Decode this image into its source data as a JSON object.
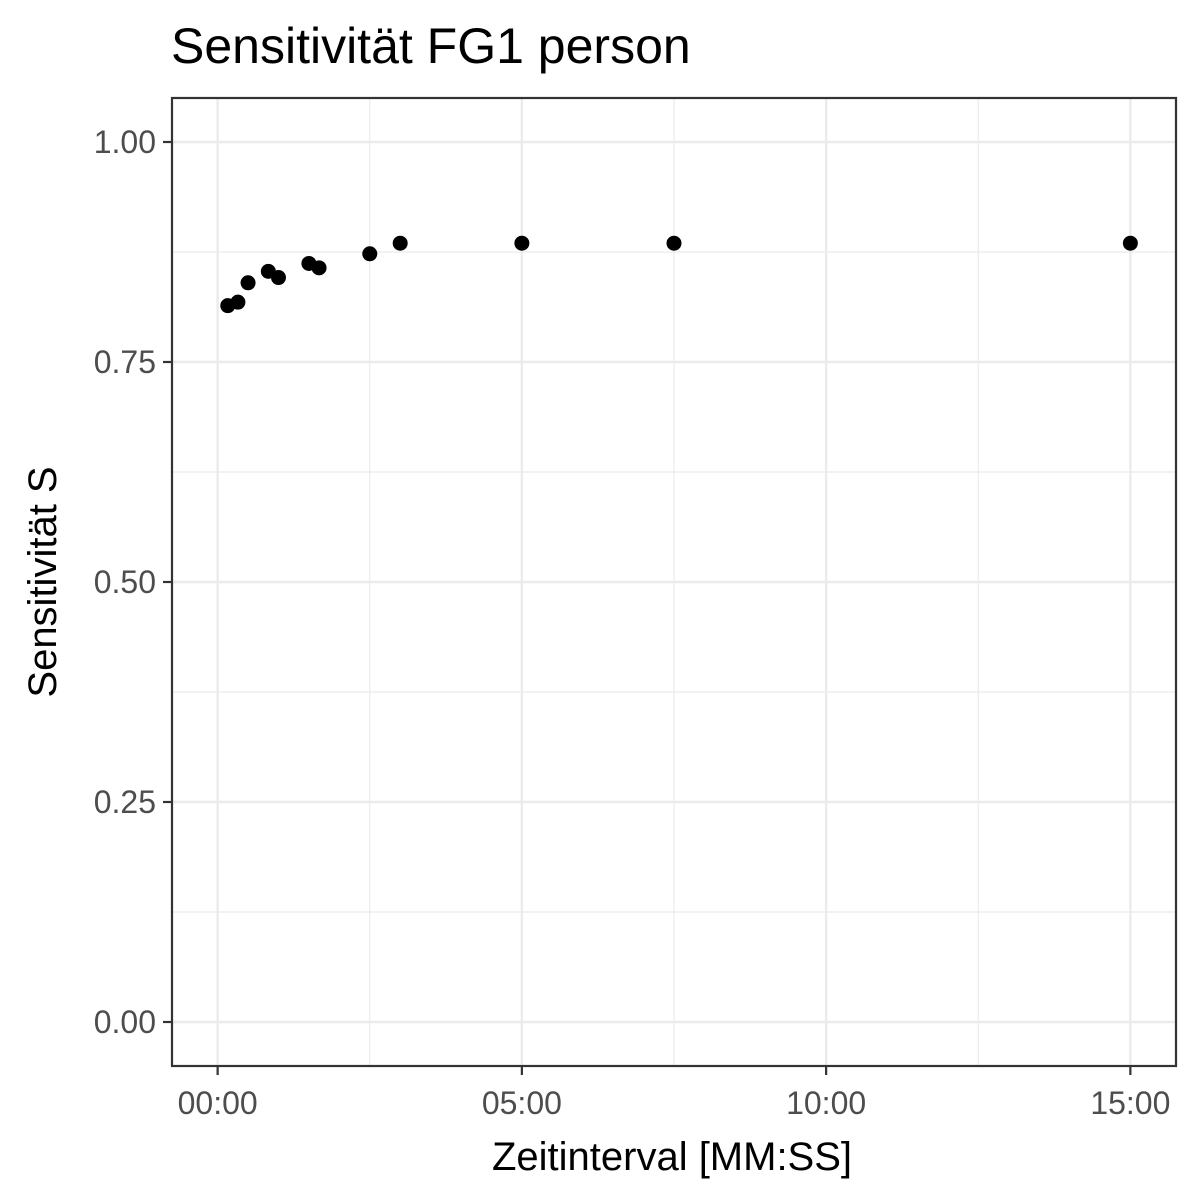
{
  "chart_data": {
    "type": "scatter",
    "title": "Sensitivität FG1 person",
    "xlabel": "Zeitinterval [MM:SS]",
    "ylabel": "Sensitivität S",
    "x_unit": "MM:SS",
    "xlim": [
      "00:00",
      "15:00"
    ],
    "ylim": [
      0,
      1
    ],
    "x_ticks": [
      "00:00",
      "05:00",
      "10:00",
      "15:00"
    ],
    "y_ticks": [
      "0.00",
      "0.25",
      "0.50",
      "0.75",
      "1.00"
    ],
    "grid": true,
    "marker_color": "#000000",
    "points": [
      {
        "x": "00:10",
        "y": 0.814
      },
      {
        "x": "00:20",
        "y": 0.818
      },
      {
        "x": "00:30",
        "y": 0.84
      },
      {
        "x": "00:50",
        "y": 0.853
      },
      {
        "x": "01:00",
        "y": 0.846
      },
      {
        "x": "01:30",
        "y": 0.862
      },
      {
        "x": "01:40",
        "y": 0.857
      },
      {
        "x": "02:30",
        "y": 0.873
      },
      {
        "x": "03:00",
        "y": 0.885
      },
      {
        "x": "05:00",
        "y": 0.885
      },
      {
        "x": "07:30",
        "y": 0.885
      },
      {
        "x": "15:00",
        "y": 0.885
      }
    ]
  }
}
